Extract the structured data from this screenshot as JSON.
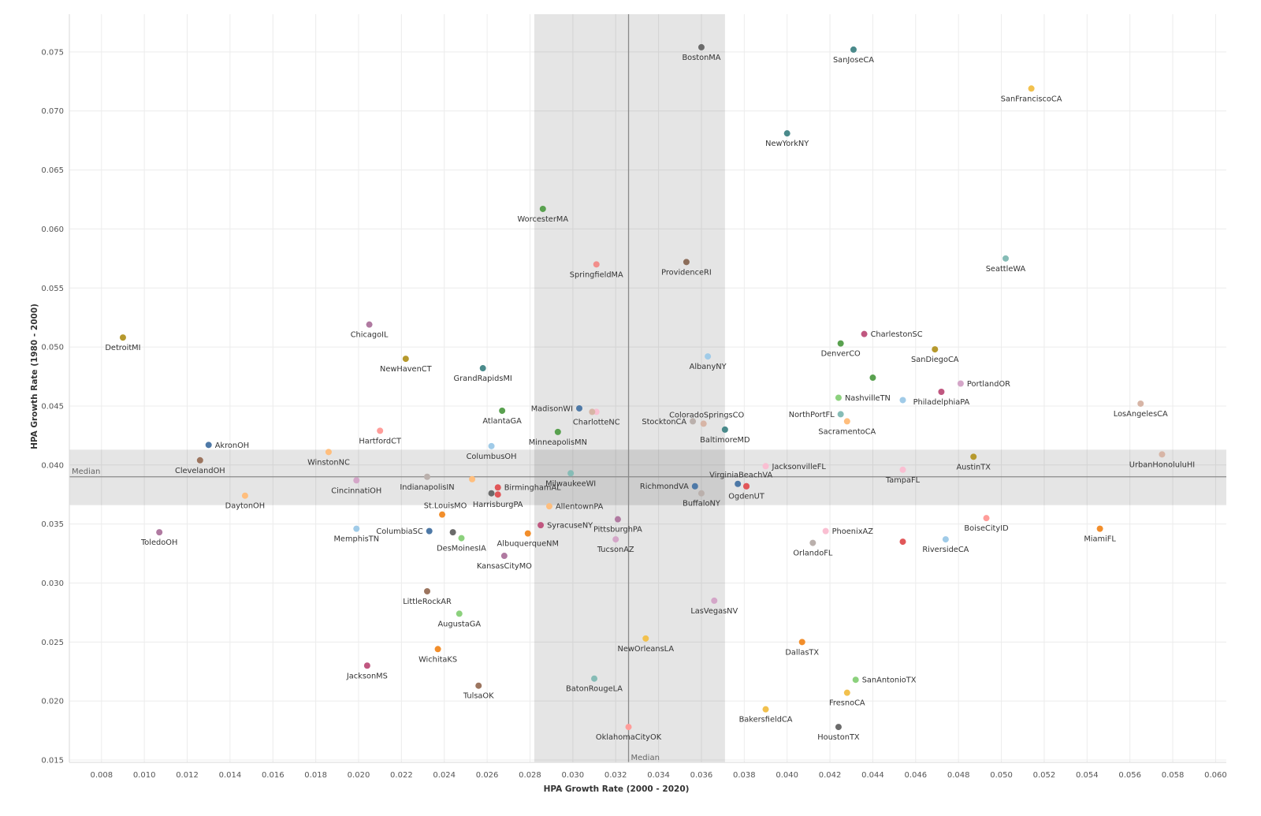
{
  "chart_data": {
    "type": "scatter",
    "xlabel": "HPA Growth Rate (2000 - 2020)",
    "ylabel": "HPA Growth Rate (1980 - 2000)",
    "xlim": [
      0.0065,
      0.0605
    ],
    "ylim": [
      0.0148,
      0.0782
    ],
    "x_ticks": [
      "0.008",
      "0.010",
      "0.012",
      "0.014",
      "0.016",
      "0.018",
      "0.020",
      "0.022",
      "0.024",
      "0.026",
      "0.028",
      "0.030",
      "0.032",
      "0.034",
      "0.036",
      "0.038",
      "0.040",
      "0.042",
      "0.044",
      "0.046",
      "0.048",
      "0.050",
      "0.052",
      "0.054",
      "0.056",
      "0.058",
      "0.060"
    ],
    "y_ticks": [
      "0.015",
      "0.020",
      "0.025",
      "0.030",
      "0.035",
      "0.040",
      "0.045",
      "0.050",
      "0.055",
      "0.060",
      "0.065",
      "0.070",
      "0.075"
    ],
    "grid": true,
    "median": {
      "x": 0.0326,
      "y": 0.039,
      "label": "Median"
    },
    "bands": {
      "x_range": [
        0.0282,
        0.0371
      ],
      "y_range": [
        0.0366,
        0.0413
      ]
    },
    "points": [
      {
        "label": "BostonMA",
        "x": 0.036,
        "y": 0.0754,
        "color": "#6b6b6b"
      },
      {
        "label": "SanJoseCA",
        "x": 0.0431,
        "y": 0.0752,
        "color": "#4a8a8b"
      },
      {
        "label": "SanFranciscoCA",
        "x": 0.0514,
        "y": 0.0719,
        "color": "#f2c14e"
      },
      {
        "label": "NewYorkNY",
        "x": 0.04,
        "y": 0.0681,
        "color": "#4a8a8b"
      },
      {
        "label": "WorcesterMA",
        "x": 0.0286,
        "y": 0.0617,
        "color": "#59a14f"
      },
      {
        "label": "SpringfieldMA",
        "x": 0.0311,
        "y": 0.057,
        "color": "#f28e8b"
      },
      {
        "label": "ProvidenceRI",
        "x": 0.0353,
        "y": 0.0572,
        "color": "#8c6d5a"
      },
      {
        "label": "SeattleWA",
        "x": 0.0502,
        "y": 0.0575,
        "color": "#86bcb6"
      },
      {
        "label": "DetroitMI",
        "x": 0.009,
        "y": 0.0508,
        "color": "#b6992d"
      },
      {
        "label": "ChicagoIL",
        "x": 0.0205,
        "y": 0.0519,
        "color": "#b07aa1"
      },
      {
        "label": "NewHavenCT",
        "x": 0.0222,
        "y": 0.049,
        "color": "#b6992d"
      },
      {
        "label": "GrandRapidsMI",
        "x": 0.0258,
        "y": 0.0482,
        "color": "#4a8a8b"
      },
      {
        "label": "AlbanyNY",
        "x": 0.0363,
        "y": 0.0492,
        "color": "#a0cbe8"
      },
      {
        "label": "CharlestonSC",
        "x": 0.0436,
        "y": 0.0511,
        "color": "#c05780"
      },
      {
        "label": "DenverCO",
        "x": 0.0425,
        "y": 0.0503,
        "color": "#59a14f"
      },
      {
        "label": "SanDiegoCA",
        "x": 0.0469,
        "y": 0.0498,
        "color": "#b6992d"
      },
      {
        "label": "",
        "x": 0.044,
        "y": 0.0474,
        "color": "#59a14f"
      },
      {
        "label": "PortlandOR",
        "x": 0.0481,
        "y": 0.0469,
        "color": "#d4a6c8"
      },
      {
        "label": "PhiladelphiaPA",
        "x": 0.0472,
        "y": 0.0462,
        "color": "#c05780"
      },
      {
        "label": "NashvilleTN",
        "x": 0.0424,
        "y": 0.0457,
        "color": "#8cd17d"
      },
      {
        "label": "",
        "x": 0.0454,
        "y": 0.0455,
        "color": "#a0cbe8"
      },
      {
        "label": "LosAngelesCA",
        "x": 0.0565,
        "y": 0.0452,
        "color": "#d7b5a6"
      },
      {
        "label": "MadisonWI",
        "x": 0.0303,
        "y": 0.0448,
        "color": "#4e79a7"
      },
      {
        "label": "CharlotteNC",
        "x": 0.0311,
        "y": 0.0445,
        "color": "#fabfd2"
      },
      {
        "label": "",
        "x": 0.0309,
        "y": 0.0445,
        "color": "#d7b5a6"
      },
      {
        "label": "AtlantaGA",
        "x": 0.0267,
        "y": 0.0446,
        "color": "#59a14f"
      },
      {
        "label": "NorthPortFL",
        "x": 0.0425,
        "y": 0.0443,
        "color": "#86bcb6"
      },
      {
        "label": "StocktonCA",
        "x": 0.0356,
        "y": 0.0437,
        "color": "#bab0ac"
      },
      {
        "label": "ColoradoSpringsCO",
        "x": 0.0361,
        "y": 0.0435,
        "color": "#d7b5a6"
      },
      {
        "label": "SacramentoCA",
        "x": 0.0428,
        "y": 0.0437,
        "color": "#ffbe7d"
      },
      {
        "label": "BaltimoreMD",
        "x": 0.0371,
        "y": 0.043,
        "color": "#4a8a8b"
      },
      {
        "label": "HartfordCT",
        "x": 0.021,
        "y": 0.0429,
        "color": "#ff9d9a"
      },
      {
        "label": "MinneapolisMN",
        "x": 0.0293,
        "y": 0.0428,
        "color": "#59a14f"
      },
      {
        "label": "AkronOH",
        "x": 0.013,
        "y": 0.0417,
        "color": "#4e79a7"
      },
      {
        "label": "ColumbusOH",
        "x": 0.0262,
        "y": 0.0416,
        "color": "#a0cbe8"
      },
      {
        "label": "WinstonNC",
        "x": 0.0186,
        "y": 0.0411,
        "color": "#ffbe7d"
      },
      {
        "label": "ClevelandOH",
        "x": 0.0126,
        "y": 0.0404,
        "color": "#9c755f"
      },
      {
        "label": "AustinTX",
        "x": 0.0487,
        "y": 0.0407,
        "color": "#b6992d"
      },
      {
        "label": "UrbanHonoluluHI",
        "x": 0.0575,
        "y": 0.0409,
        "color": "#d7b5a6"
      },
      {
        "label": "JacksonvilleFL",
        "x": 0.039,
        "y": 0.0399,
        "color": "#fabfd2"
      },
      {
        "label": "TampaFL",
        "x": 0.0454,
        "y": 0.0396,
        "color": "#fabfd2"
      },
      {
        "label": "MilwaukeeWI",
        "x": 0.0299,
        "y": 0.0393,
        "color": "#86bcb6"
      },
      {
        "label": "IndianapolisIN",
        "x": 0.0232,
        "y": 0.039,
        "color": "#bab0ac"
      },
      {
        "label": "",
        "x": 0.0253,
        "y": 0.0388,
        "color": "#ffbe7d"
      },
      {
        "label": "CincinnatiOH",
        "x": 0.0199,
        "y": 0.0387,
        "color": "#d4a6c8"
      },
      {
        "label": "VirginiaBeachVA",
        "x": 0.0377,
        "y": 0.0384,
        "color": "#4e79a7"
      },
      {
        "label": "",
        "x": 0.0381,
        "y": 0.0382,
        "color": "#e15759"
      },
      {
        "label": "RichmondVA",
        "x": 0.0357,
        "y": 0.0382,
        "color": "#4e79a7"
      },
      {
        "label": "BirminghamAL",
        "x": 0.0265,
        "y": 0.0381,
        "color": "#e15759"
      },
      {
        "label": "OgdenUT",
        "x": 0.0381,
        "y": 0.0382,
        "color": "#e15759"
      },
      {
        "label": "HarrisburgPA",
        "x": 0.0265,
        "y": 0.0375,
        "color": "#e15759"
      },
      {
        "label": "",
        "x": 0.0262,
        "y": 0.0376,
        "color": "#6b6b6b"
      },
      {
        "label": "BuffaloNY",
        "x": 0.036,
        "y": 0.0376,
        "color": "#bab0ac"
      },
      {
        "label": "DaytonOH",
        "x": 0.0147,
        "y": 0.0374,
        "color": "#ffbe7d"
      },
      {
        "label": "AllentownPA",
        "x": 0.0289,
        "y": 0.0365,
        "color": "#ffbe7d"
      },
      {
        "label": "St.LouisMO",
        "x": 0.0239,
        "y": 0.0358,
        "color": "#f28e2b"
      },
      {
        "label": "BoiseCityID",
        "x": 0.0493,
        "y": 0.0355,
        "color": "#ff9d9a"
      },
      {
        "label": "PittsburghPA",
        "x": 0.0321,
        "y": 0.0354,
        "color": "#b07aa1"
      },
      {
        "label": "SyracuseNY",
        "x": 0.0285,
        "y": 0.0349,
        "color": "#c05780"
      },
      {
        "label": "MiamiFL",
        "x": 0.0546,
        "y": 0.0346,
        "color": "#f28e2b"
      },
      {
        "label": "MemphisTN",
        "x": 0.0199,
        "y": 0.0346,
        "color": "#a0cbe8"
      },
      {
        "label": "ToledoOH",
        "x": 0.0107,
        "y": 0.0343,
        "color": "#b07aa1"
      },
      {
        "label": "ColumbiaSC",
        "x": 0.0233,
        "y": 0.0344,
        "color": "#4e79a7"
      },
      {
        "label": "",
        "x": 0.0244,
        "y": 0.0343,
        "color": "#6b6b6b"
      },
      {
        "label": "AlbuquerqueNM",
        "x": 0.0279,
        "y": 0.0342,
        "color": "#f28e2b"
      },
      {
        "label": "PhoenixAZ",
        "x": 0.0418,
        "y": 0.0344,
        "color": "#fabfd2"
      },
      {
        "label": "DesMoinesIA",
        "x": 0.0248,
        "y": 0.0338,
        "color": "#8cd17d"
      },
      {
        "label": "TucsonAZ",
        "x": 0.032,
        "y": 0.0337,
        "color": "#d4a6c8"
      },
      {
        "label": "RiversideCA",
        "x": 0.0474,
        "y": 0.0337,
        "color": "#a0cbe8"
      },
      {
        "label": "",
        "x": 0.0454,
        "y": 0.0335,
        "color": "#e15759"
      },
      {
        "label": "OrlandoFL",
        "x": 0.0412,
        "y": 0.0334,
        "color": "#bab0ac"
      },
      {
        "label": "KansasCityMO",
        "x": 0.0268,
        "y": 0.0323,
        "color": "#b07aa1"
      },
      {
        "label": "LittleRockAR",
        "x": 0.0232,
        "y": 0.0293,
        "color": "#9c755f"
      },
      {
        "label": "LasVegasNV",
        "x": 0.0366,
        "y": 0.0285,
        "color": "#d4a6c8"
      },
      {
        "label": "AugustaGA",
        "x": 0.0247,
        "y": 0.0274,
        "color": "#8cd17d"
      },
      {
        "label": "NewOrleansLA",
        "x": 0.0334,
        "y": 0.0253,
        "color": "#f2c14e"
      },
      {
        "label": "DallasTX",
        "x": 0.0407,
        "y": 0.025,
        "color": "#f28e2b"
      },
      {
        "label": "WichitaKS",
        "x": 0.0237,
        "y": 0.0244,
        "color": "#f28e2b"
      },
      {
        "label": "JacksonMS",
        "x": 0.0204,
        "y": 0.023,
        "color": "#c05780"
      },
      {
        "label": "BatonRougeLA",
        "x": 0.031,
        "y": 0.0219,
        "color": "#86bcb6"
      },
      {
        "label": "SanAntonioTX",
        "x": 0.0432,
        "y": 0.0218,
        "color": "#8cd17d"
      },
      {
        "label": "TulsaOK",
        "x": 0.0256,
        "y": 0.0213,
        "color": "#9c755f"
      },
      {
        "label": "FresnoCA",
        "x": 0.0428,
        "y": 0.0207,
        "color": "#f2c14e"
      },
      {
        "label": "BakersfieldCA",
        "x": 0.039,
        "y": 0.0193,
        "color": "#f2c14e"
      },
      {
        "label": "OklahomaCityOK",
        "x": 0.0326,
        "y": 0.0178,
        "color": "#ff9d9a"
      },
      {
        "label": "HoustonTX",
        "x": 0.0424,
        "y": 0.0178,
        "color": "#6b6b6b"
      }
    ]
  }
}
